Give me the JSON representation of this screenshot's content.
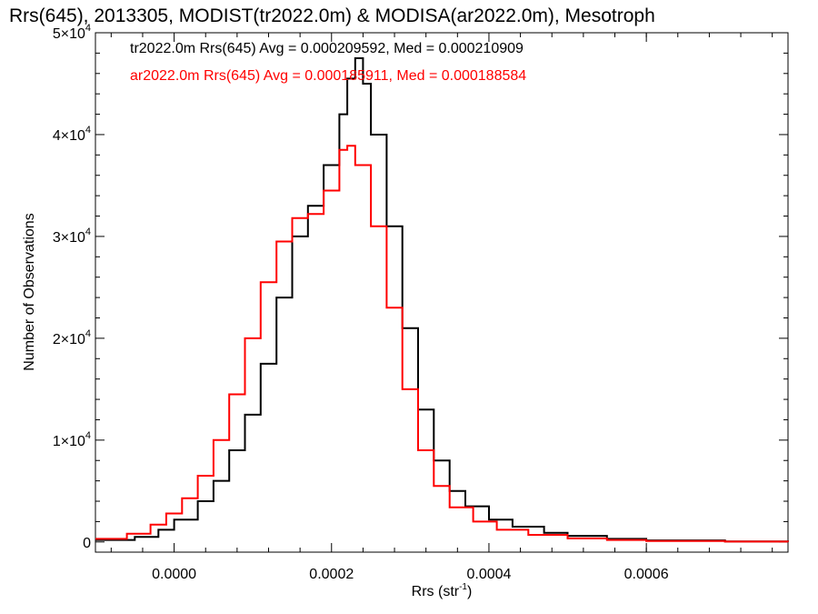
{
  "chart_data": {
    "type": "line",
    "step": true,
    "title": "Rrs(645), 2013305, MODIST(tr2022.0m) & MODISA(ar2022.0m), Mesotroph",
    "xlabel_main": "Rrs (str",
    "xlabel_sup": "-1",
    "xlabel_end": ")",
    "ylabel": "Number of Observations",
    "xlim": [
      -0.0001,
      0.00078
    ],
    "ylim": [
      -1000,
      50000
    ],
    "x_ticks": [
      {
        "value": 0.0,
        "label": "0.0000"
      },
      {
        "value": 0.0002,
        "label": "0.0002"
      },
      {
        "value": 0.0004,
        "label": "0.0004"
      },
      {
        "value": 0.0006,
        "label": "0.0006"
      }
    ],
    "y_ticks": [
      {
        "value": 0,
        "base": "0",
        "exp": ""
      },
      {
        "value": 10000,
        "base": "1×10",
        "exp": "4"
      },
      {
        "value": 20000,
        "base": "2×10",
        "exp": "4"
      },
      {
        "value": 30000,
        "base": "3×10",
        "exp": "4"
      },
      {
        "value": 40000,
        "base": "4×10",
        "exp": "4"
      },
      {
        "value": 50000,
        "base": "5×10",
        "exp": "4"
      }
    ],
    "grid": false,
    "legend_position": "top-left",
    "series": [
      {
        "name": "tr2022.0m Rrs(645) Avg = 0.000209592, Med = 0.000210909",
        "color": "#000000",
        "points": [
          [
            -0.0001,
            200
          ],
          [
            -5e-05,
            500
          ],
          [
            -2e-05,
            1200
          ],
          [
            0.0,
            2200
          ],
          [
            3e-05,
            4000
          ],
          [
            5e-05,
            6000
          ],
          [
            7e-05,
            9000
          ],
          [
            9e-05,
            12500
          ],
          [
            0.00011,
            17500
          ],
          [
            0.00013,
            24000
          ],
          [
            0.00015,
            30000
          ],
          [
            0.00017,
            33000
          ],
          [
            0.00019,
            37000
          ],
          [
            0.00021,
            42000
          ],
          [
            0.00022,
            45500
          ],
          [
            0.00023,
            47500
          ],
          [
            0.00024,
            45000
          ],
          [
            0.00025,
            40000
          ],
          [
            0.00027,
            31000
          ],
          [
            0.00029,
            21000
          ],
          [
            0.00031,
            13000
          ],
          [
            0.00033,
            8000
          ],
          [
            0.00035,
            5000
          ],
          [
            0.00037,
            3500
          ],
          [
            0.0004,
            2200
          ],
          [
            0.00043,
            1500
          ],
          [
            0.00047,
            900
          ],
          [
            0.0005,
            600
          ],
          [
            0.00055,
            300
          ],
          [
            0.0006,
            150
          ],
          [
            0.0007,
            50
          ],
          [
            0.00078,
            20
          ]
        ]
      },
      {
        "name": "ar2022.0m Rrs(645) Avg = 0.000185911, Med = 0.000188584",
        "color": "#ff0000",
        "points": [
          [
            -0.0001,
            300
          ],
          [
            -6e-05,
            800
          ],
          [
            -3e-05,
            1700
          ],
          [
            -1e-05,
            2800
          ],
          [
            1e-05,
            4300
          ],
          [
            3e-05,
            6500
          ],
          [
            5e-05,
            10000
          ],
          [
            7e-05,
            14500
          ],
          [
            9e-05,
            20000
          ],
          [
            0.00011,
            25500
          ],
          [
            0.00013,
            29500
          ],
          [
            0.00015,
            31800
          ],
          [
            0.00017,
            32200
          ],
          [
            0.00019,
            34500
          ],
          [
            0.00021,
            38500
          ],
          [
            0.00022,
            38900
          ],
          [
            0.00023,
            37000
          ],
          [
            0.00025,
            31000
          ],
          [
            0.00027,
            23000
          ],
          [
            0.00029,
            15000
          ],
          [
            0.00031,
            9000
          ],
          [
            0.00033,
            5500
          ],
          [
            0.00035,
            3400
          ],
          [
            0.00038,
            2000
          ],
          [
            0.00041,
            1200
          ],
          [
            0.00045,
            700
          ],
          [
            0.0005,
            350
          ],
          [
            0.00055,
            200
          ],
          [
            0.0006,
            100
          ],
          [
            0.0007,
            40
          ],
          [
            0.00078,
            15
          ]
        ]
      }
    ]
  }
}
